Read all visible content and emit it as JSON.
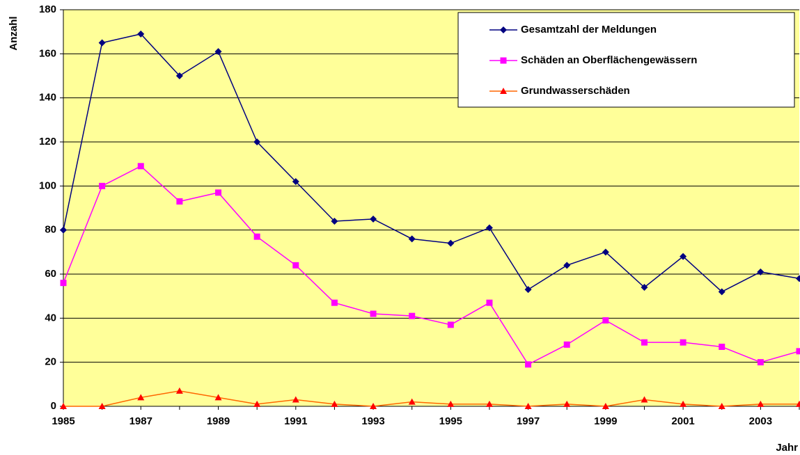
{
  "chart_data": {
    "type": "line",
    "x_label": "Jahr",
    "y_label": "Anzahl",
    "categories": [
      "1985",
      null,
      "1987",
      null,
      "1989",
      null,
      "1991",
      null,
      "1993",
      null,
      "1995",
      null,
      "1997",
      null,
      "1999",
      null,
      "2001",
      null,
      "2003",
      null
    ],
    "series": [
      {
        "name": "Gesamtzahl der Meldungen",
        "color": "#000080",
        "marker": "diamond",
        "marker_color": "#000080",
        "values": [
          80,
          165,
          169,
          150,
          161,
          120,
          102,
          84,
          85,
          76,
          74,
          81,
          53,
          64,
          70,
          54,
          68,
          52,
          61,
          58
        ]
      },
      {
        "name": "Schäden an Oberflächengewässern",
        "color": "#ff00ff",
        "marker": "square",
        "marker_color": "#ff00ff",
        "values": [
          56,
          100,
          109,
          93,
          97,
          77,
          64,
          47,
          42,
          41,
          37,
          47,
          19,
          28,
          39,
          29,
          29,
          27,
          20,
          25
        ]
      },
      {
        "name": "Grundwasserschäden",
        "color": "#ff6600",
        "marker": "triangle",
        "marker_color": "#ff0000",
        "values": [
          0,
          0,
          4,
          7,
          4,
          1,
          3,
          1,
          0,
          2,
          1,
          1,
          0,
          1,
          0,
          3,
          1,
          0,
          1,
          1
        ]
      }
    ],
    "ylim": [
      0,
      180
    ],
    "yticks": [
      0,
      20,
      40,
      60,
      80,
      100,
      120,
      140,
      160,
      180
    ],
    "grid": true,
    "legend": "top-right",
    "background": "#ffff99"
  }
}
